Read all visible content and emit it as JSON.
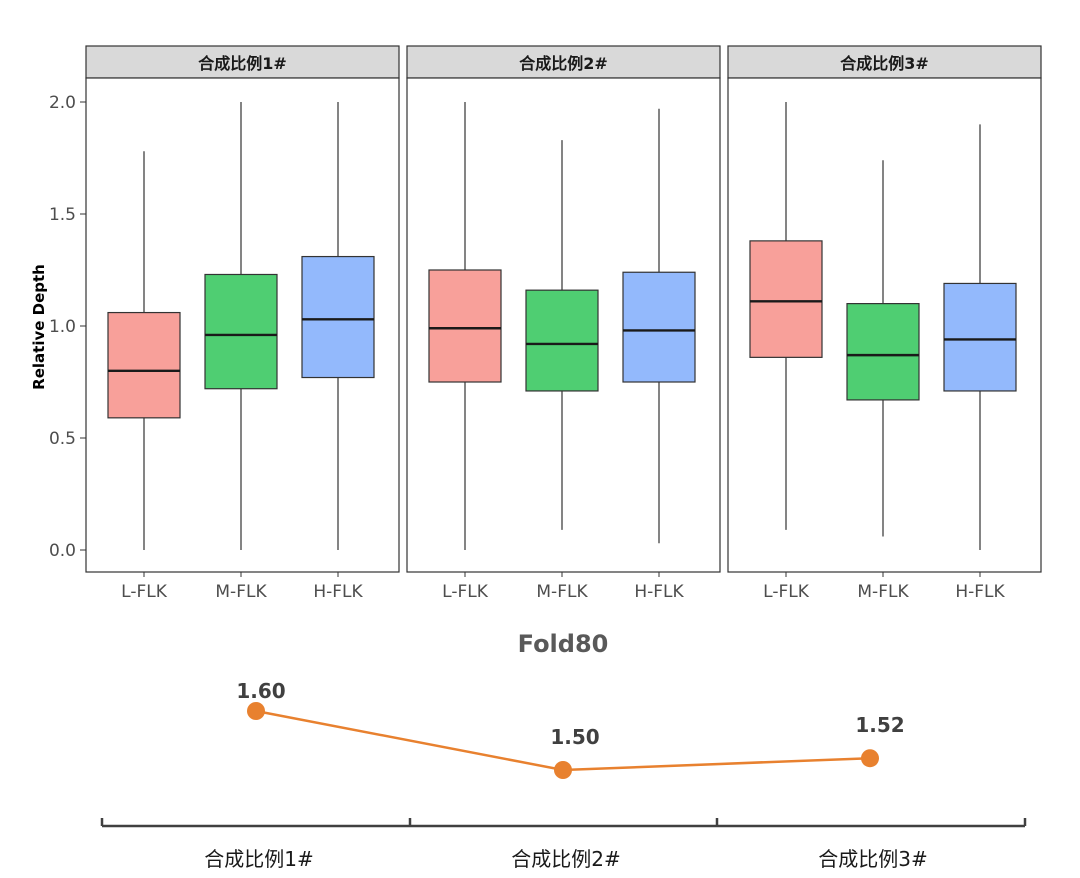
{
  "chart_data": [
    {
      "type": "boxplot",
      "ylabel": "Relative Depth",
      "xlabel": "",
      "ylim": [
        0,
        2.0
      ],
      "yticks": [
        "0.0",
        "0.5",
        "1.0",
        "1.5",
        "2.0"
      ],
      "categories": [
        "L-FLK",
        "M-FLK",
        "H-FLK"
      ],
      "colors": {
        "L-FLK": "#F8A09A",
        "M-FLK": "#4FCE72",
        "H-FLK": "#93B9FC"
      },
      "grid": false,
      "legend": "none",
      "panels": [
        {
          "strip": "合成比例1#",
          "boxes": [
            {
              "category": "L-FLK",
              "min": 0.0,
              "q1": 0.59,
              "median": 0.8,
              "q3": 1.06,
              "max": 1.78
            },
            {
              "category": "M-FLK",
              "min": 0.0,
              "q1": 0.72,
              "median": 0.96,
              "q3": 1.23,
              "max": 2.0
            },
            {
              "category": "H-FLK",
              "min": 0.0,
              "q1": 0.77,
              "median": 1.03,
              "q3": 1.31,
              "max": 2.0
            }
          ]
        },
        {
          "strip": "合成比例2#",
          "boxes": [
            {
              "category": "L-FLK",
              "min": 0.0,
              "q1": 0.75,
              "median": 0.99,
              "q3": 1.25,
              "max": 2.0
            },
            {
              "category": "M-FLK",
              "min": 0.09,
              "q1": 0.71,
              "median": 0.92,
              "q3": 1.16,
              "max": 1.83
            },
            {
              "category": "H-FLK",
              "min": 0.03,
              "q1": 0.75,
              "median": 0.98,
              "q3": 1.24,
              "max": 1.97
            }
          ]
        },
        {
          "strip": "合成比例3#",
          "boxes": [
            {
              "category": "L-FLK",
              "min": 0.09,
              "q1": 0.86,
              "median": 1.11,
              "q3": 1.38,
              "max": 2.0
            },
            {
              "category": "M-FLK",
              "min": 0.06,
              "q1": 0.67,
              "median": 0.87,
              "q3": 1.1,
              "max": 1.74
            },
            {
              "category": "H-FLK",
              "min": 0.0,
              "q1": 0.71,
              "median": 0.94,
              "q3": 1.19,
              "max": 1.9
            }
          ]
        }
      ]
    },
    {
      "type": "line",
      "title": "Fold80",
      "categories": [
        "合成比例1#",
        "合成比例2#",
        "合成比例3#"
      ],
      "values": [
        1.6,
        1.5,
        1.52
      ],
      "labels": [
        "1.60",
        "1.50",
        "1.52"
      ],
      "color": "#E8812F",
      "grid": false,
      "legend": "none"
    }
  ]
}
